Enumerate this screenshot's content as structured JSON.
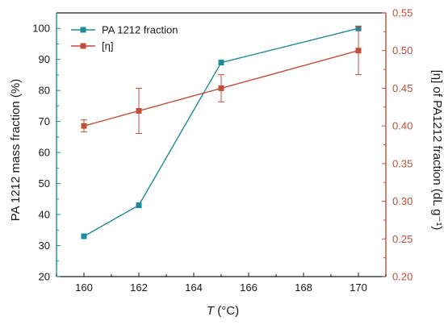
{
  "chart_data": {
    "type": "line",
    "xlabel_italic": "T",
    "xlabel_rest": " (°C)",
    "xlim": [
      159,
      171
    ],
    "xticks": [
      160,
      162,
      164,
      166,
      168,
      170
    ],
    "ylabel_left": "PA 1212 mass fraction (%)",
    "ylim_left": [
      20,
      105
    ],
    "yticks_left": [
      20,
      30,
      40,
      50,
      60,
      70,
      80,
      90,
      100
    ],
    "ylabel_right": "[η] of PA1212 fraction (dL g⁻¹)",
    "ylim_right": [
      0.2,
      0.55
    ],
    "yticks_right": [
      "0.20",
      "0.25",
      "0.30",
      "0.35",
      "0.40",
      "0.45",
      "0.50",
      "0.55"
    ],
    "grid": false,
    "legend_position": "top-left",
    "series": [
      {
        "name": "PA 1212 fraction",
        "axis": "left",
        "color": "#1f8a9a",
        "marker": "square",
        "x": [
          160,
          162,
          165,
          170
        ],
        "y": [
          33,
          43,
          89,
          100
        ]
      },
      {
        "name": "[η]",
        "axis": "right",
        "color": "#c0503a",
        "marker": "square",
        "x": [
          160,
          162,
          165,
          170
        ],
        "y": [
          0.4,
          0.42,
          0.45,
          0.5
        ],
        "error": [
          0.008,
          0.03,
          0.018,
          0.032
        ]
      }
    ],
    "left_axis_color": "#1f8a9a",
    "right_axis_color": "#c0503a"
  }
}
